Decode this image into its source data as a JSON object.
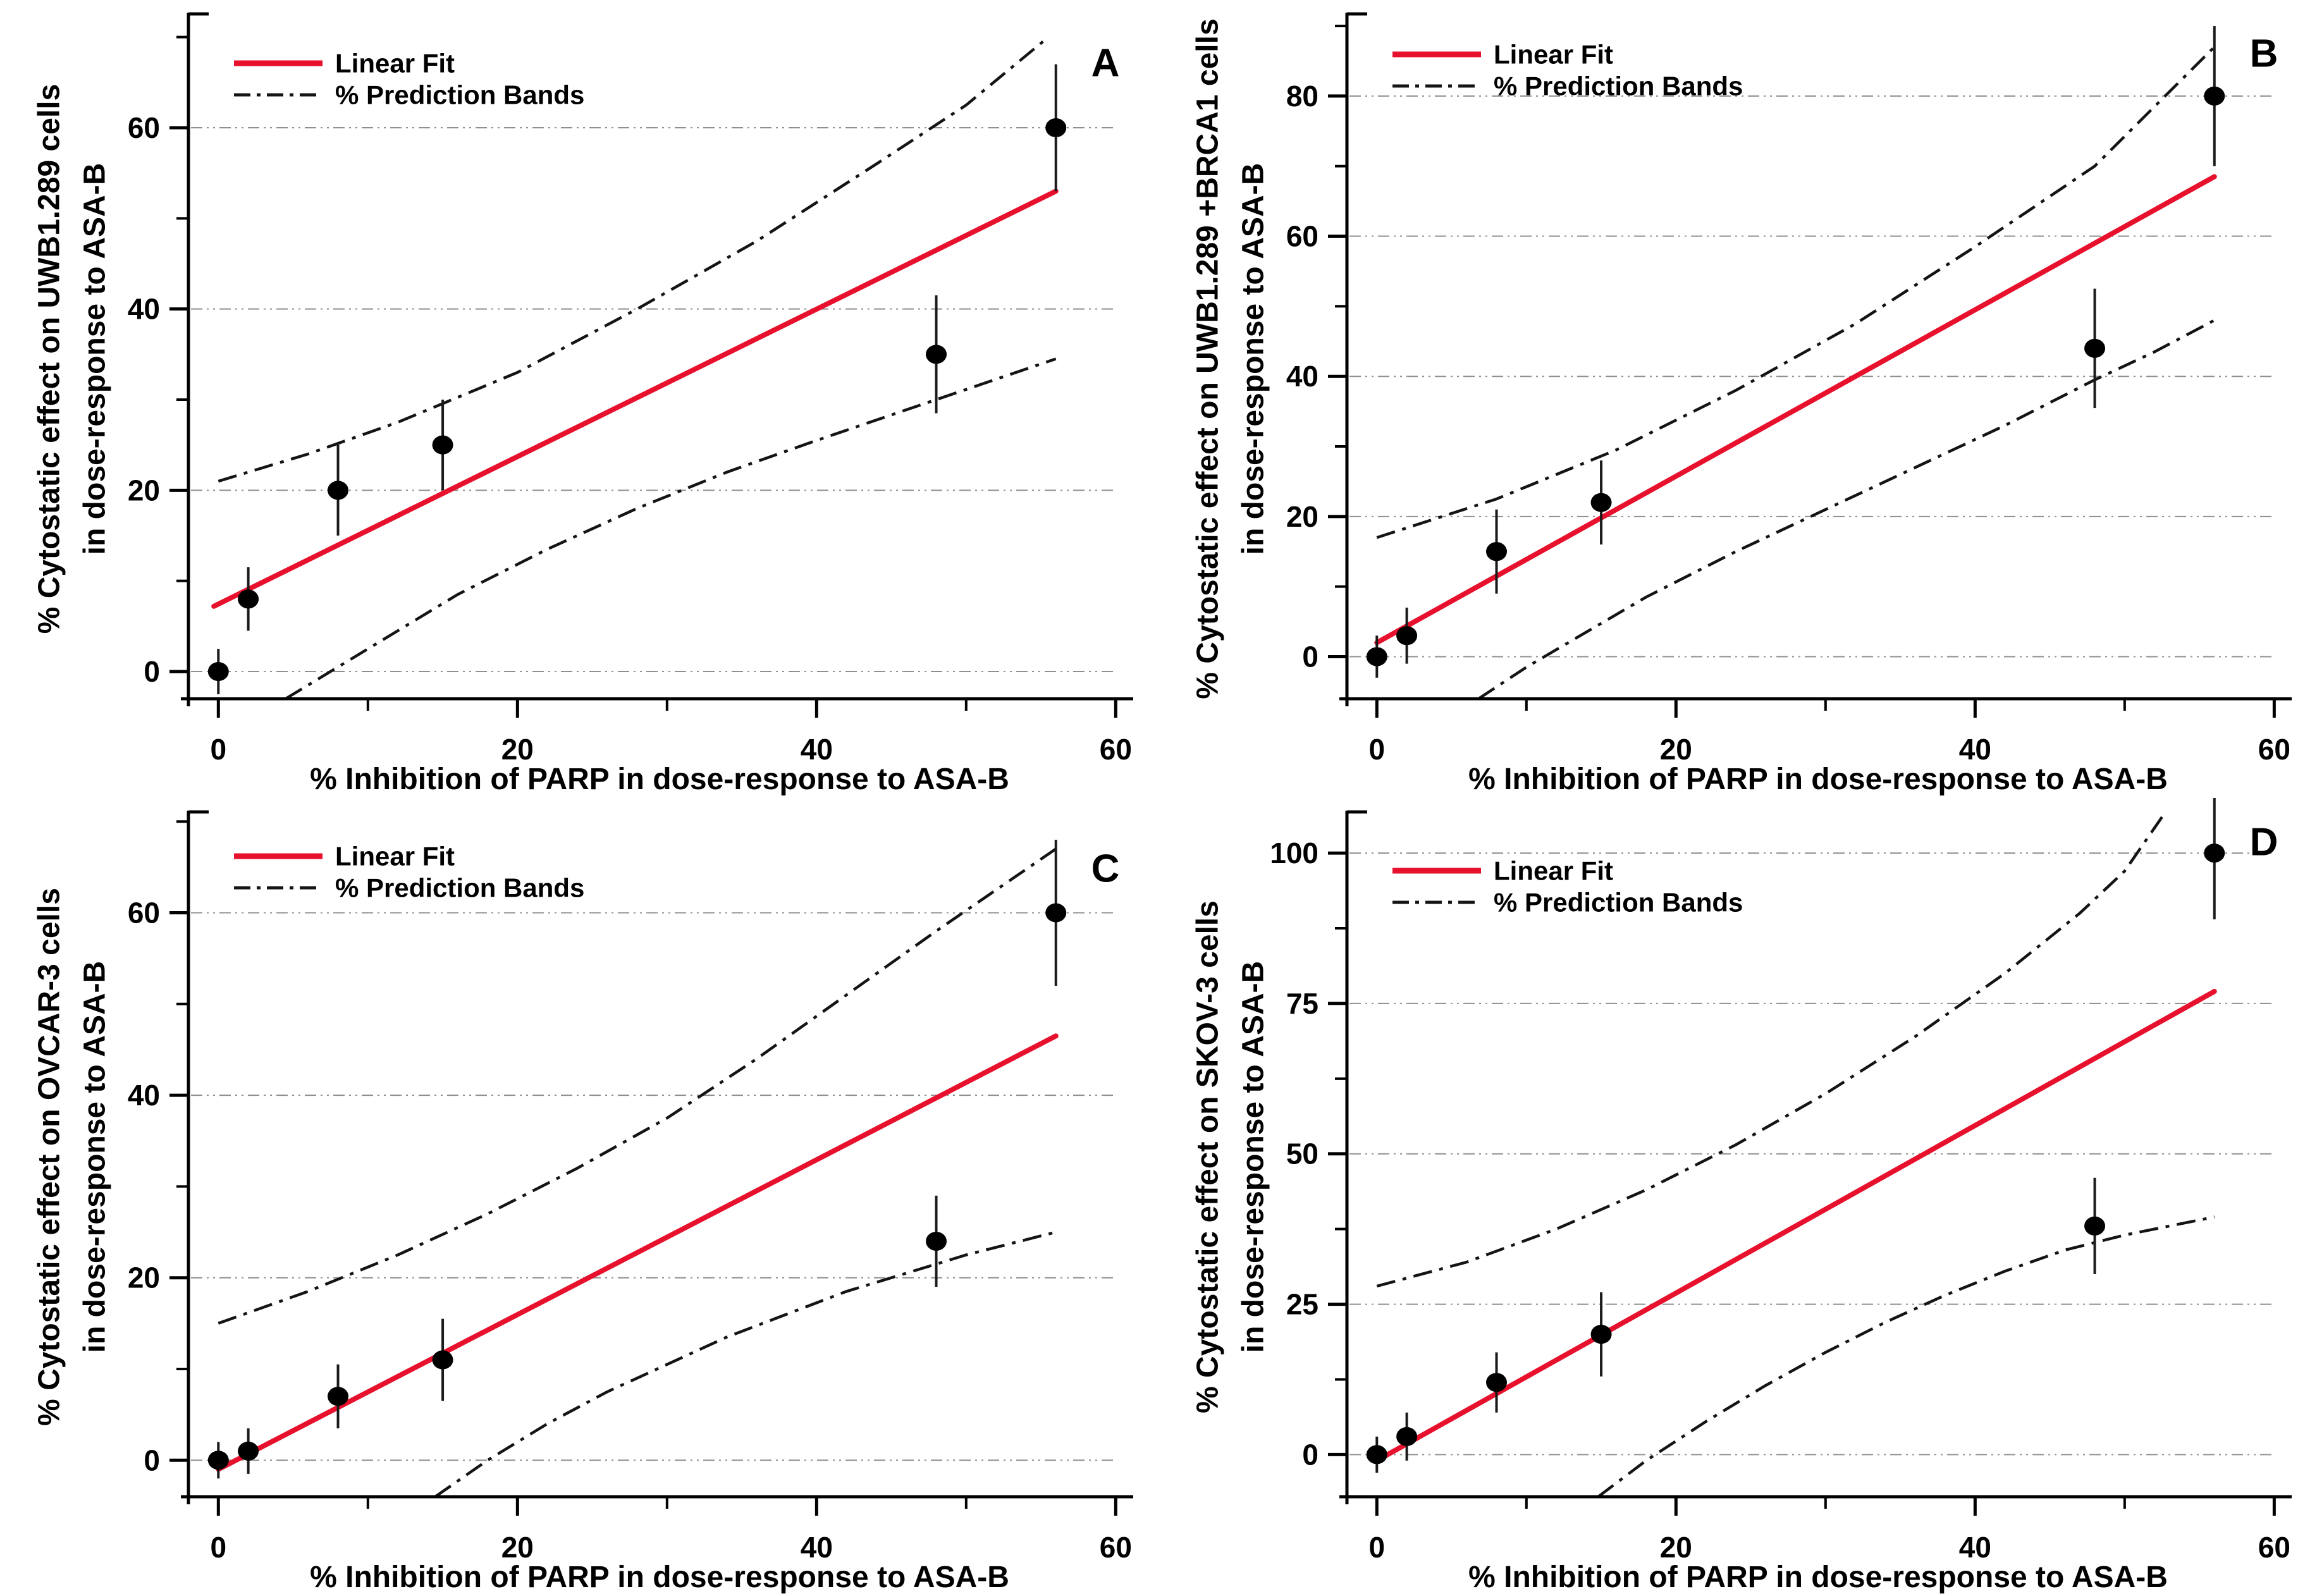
{
  "figure": {
    "description_x_axis": "% Inhibition of PARP in dose-response to ASA-B",
    "legend_labels": [
      "Linear Fit",
      "% Prediction Bands"
    ]
  },
  "colors": {
    "fit_line": "#e8112d",
    "prediction_band": "#141414",
    "gridline": "#8f8f8f",
    "marker": "#000000",
    "error_bar": "#1a1a1a",
    "axis": "#000000"
  },
  "chart_data": [
    {
      "panel_letter": "A",
      "type": "scatter",
      "xlabel": "% Inhibition of PARP in dose-response to ASA-B",
      "ylabel_line1": "% Cytostatic effect on UWB1.289 cells",
      "ylabel_line2": "in dose-response to ASA-B",
      "legend": [
        "Linear Fit",
        "% Prediction Bands"
      ],
      "x": [
        0,
        2,
        8,
        15,
        48,
        56
      ],
      "y": [
        0,
        8,
        20,
        25,
        35,
        60
      ],
      "yerr": [
        2.5,
        3.5,
        5,
        5,
        6.5,
        7
      ],
      "xlim": [
        -2,
        61
      ],
      "ylim": [
        -3,
        72
      ],
      "xticks": [
        0,
        20,
        40,
        60
      ],
      "xticks_minor": [
        10,
        30,
        50
      ],
      "yticks": [
        0,
        20,
        40,
        60
      ],
      "yticks_minor": [
        10,
        30,
        50,
        70
      ],
      "fit_line": [
        [
          -0.3,
          7.2
        ],
        [
          56,
          53
        ]
      ],
      "band_upper": [
        [
          0,
          21
        ],
        [
          6,
          24
        ],
        [
          12,
          27.5
        ],
        [
          20,
          33
        ],
        [
          28,
          40
        ],
        [
          36,
          47.5
        ],
        [
          44,
          56
        ],
        [
          50,
          62.5
        ],
        [
          55.5,
          70
        ]
      ],
      "band_lower": [
        [
          4.5,
          -3
        ],
        [
          8,
          0.5
        ],
        [
          12,
          4.5
        ],
        [
          16,
          8.5
        ],
        [
          22,
          13.5
        ],
        [
          28,
          18
        ],
        [
          34,
          22
        ],
        [
          40,
          25.5
        ],
        [
          48,
          30
        ],
        [
          56,
          34.5
        ]
      ],
      "legend_rows_y": [
        100,
        150
      ],
      "letter_y": 100
    },
    {
      "panel_letter": "B",
      "type": "scatter",
      "xlabel": "% Inhibition of PARP in dose-response to ASA-B",
      "ylabel_line1": "% Cytostatic effect on UWB1.289 +BRCA1 cells",
      "ylabel_line2": "in dose-response to ASA-B",
      "legend": [
        "Linear Fit",
        "% Prediction Bands"
      ],
      "x": [
        0,
        2,
        8,
        15,
        48,
        56
      ],
      "y": [
        0,
        3,
        15,
        22,
        44,
        80
      ],
      "yerr": [
        3,
        4,
        6,
        6,
        8.5,
        10
      ],
      "xlim": [
        -2,
        61
      ],
      "ylim": [
        -6,
        91
      ],
      "xticks": [
        0,
        20,
        40,
        60
      ],
      "xticks_minor": [
        10,
        30,
        50
      ],
      "yticks": [
        0,
        20,
        40,
        60,
        80
      ],
      "yticks_minor": [
        10,
        30,
        50,
        70,
        90
      ],
      "fit_line": [
        [
          0,
          2
        ],
        [
          56,
          68.5
        ]
      ],
      "band_upper": [
        [
          0,
          17
        ],
        [
          8,
          22.5
        ],
        [
          16,
          29.5
        ],
        [
          24,
          38
        ],
        [
          32,
          47.5
        ],
        [
          40,
          58.5
        ],
        [
          48,
          70
        ],
        [
          56,
          87
        ]
      ],
      "band_lower": [
        [
          6.8,
          -6
        ],
        [
          10,
          -1.5
        ],
        [
          14,
          3.5
        ],
        [
          18,
          8.5
        ],
        [
          24,
          15
        ],
        [
          30,
          21
        ],
        [
          36,
          27
        ],
        [
          42,
          33
        ],
        [
          48,
          39.5
        ],
        [
          52,
          43.5
        ],
        [
          56,
          48
        ]
      ],
      "legend_rows_y": [
        86,
        136
      ],
      "letter_y": 85
    },
    {
      "panel_letter": "C",
      "type": "scatter",
      "xlabel": "% Inhibition of PARP in dose-response to ASA-B",
      "ylabel_line1": "% Cytostatic effect on OVCAR-3 cells",
      "ylabel_line2": "in dose-response to ASA-B",
      "legend": [
        "Linear Fit",
        "% Prediction Bands"
      ],
      "x": [
        0,
        2,
        8,
        15,
        48,
        56
      ],
      "y": [
        0,
        1,
        7,
        11,
        24,
        60
      ],
      "yerr": [
        2,
        2.5,
        3.5,
        4.5,
        5,
        8
      ],
      "xlim": [
        -2,
        61
      ],
      "ylim": [
        -4,
        70.5
      ],
      "xticks": [
        0,
        20,
        40,
        60
      ],
      "xticks_minor": [
        10,
        30,
        50
      ],
      "yticks": [
        0,
        20,
        40,
        60
      ],
      "yticks_minor": [
        10,
        30,
        50,
        70
      ],
      "fit_line": [
        [
          0,
          -1
        ],
        [
          56,
          46.5
        ]
      ],
      "band_upper": [
        [
          0,
          15
        ],
        [
          6,
          18.5
        ],
        [
          12,
          22.5
        ],
        [
          18,
          27
        ],
        [
          24,
          32
        ],
        [
          30,
          37.5
        ],
        [
          36,
          44
        ],
        [
          42,
          51
        ],
        [
          48,
          58
        ],
        [
          52,
          62.5
        ],
        [
          56,
          67
        ]
      ],
      "band_lower": [
        [
          14.5,
          -4
        ],
        [
          18,
          0
        ],
        [
          22,
          4
        ],
        [
          26,
          7.5
        ],
        [
          30,
          10.5
        ],
        [
          34,
          13.5
        ],
        [
          38,
          16
        ],
        [
          42,
          18.5
        ],
        [
          46,
          20.5
        ],
        [
          50,
          22.5
        ],
        [
          56,
          25
        ]
      ],
      "legend_rows_y": [
        92,
        142
      ],
      "letter_y": 112
    },
    {
      "panel_letter": "D",
      "type": "scatter",
      "xlabel": "% Inhibition of PARP in dose-response to ASA-B",
      "ylabel_line1": "% Cytostatic effect on SKOV-3 cells",
      "ylabel_line2": "in dose-response to ASA-B",
      "legend": [
        "Linear Fit",
        "% Prediction Bands"
      ],
      "x": [
        0,
        2,
        8,
        15,
        48,
        56
      ],
      "y": [
        0,
        3,
        12,
        20,
        38,
        100
      ],
      "yerr": [
        3,
        4,
        5,
        7,
        8,
        11
      ],
      "xlim": [
        -2,
        61
      ],
      "ylim": [
        -7,
        106
      ],
      "xticks": [
        0,
        20,
        40,
        60
      ],
      "xticks_minor": [
        10,
        30,
        50
      ],
      "yticks": [
        0,
        25,
        50,
        75,
        100
      ],
      "yticks_minor": [
        12.5,
        37.5,
        62.5,
        87.5
      ],
      "fit_line": [
        [
          0,
          -1
        ],
        [
          56,
          77
        ]
      ],
      "band_upper": [
        [
          0,
          28
        ],
        [
          6,
          32
        ],
        [
          12,
          37.5
        ],
        [
          18,
          44
        ],
        [
          24,
          51.5
        ],
        [
          30,
          60
        ],
        [
          36,
          69.5
        ],
        [
          42,
          80
        ],
        [
          47,
          90
        ],
        [
          50,
          97
        ],
        [
          52.5,
          106
        ]
      ],
      "band_lower": [
        [
          14.8,
          -7
        ],
        [
          18,
          -1
        ],
        [
          22,
          5.5
        ],
        [
          26,
          11.5
        ],
        [
          30,
          17
        ],
        [
          34,
          22
        ],
        [
          38,
          26.5
        ],
        [
          42,
          30.5
        ],
        [
          46,
          34
        ],
        [
          50,
          36.5
        ],
        [
          56,
          39.5
        ]
      ],
      "legend_rows_y": [
        115,
        165
      ],
      "letter_y": 70
    }
  ]
}
